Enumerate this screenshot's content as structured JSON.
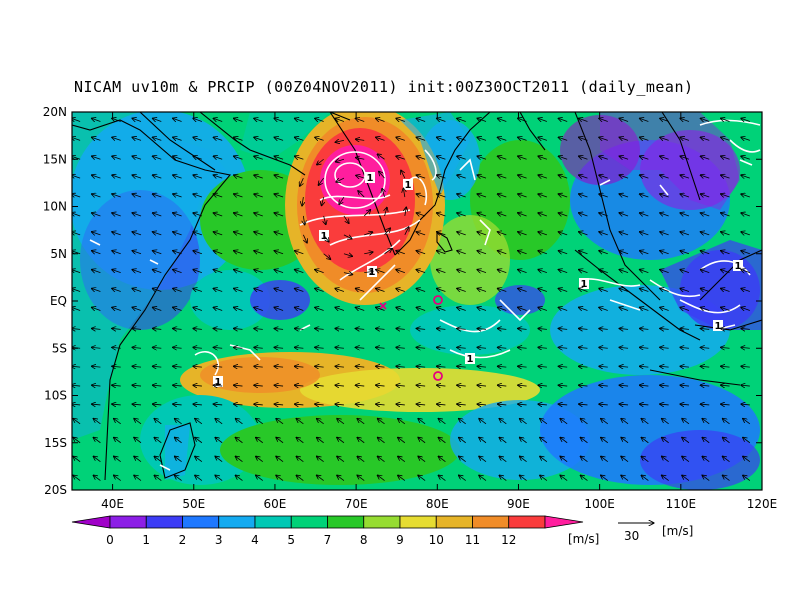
{
  "title": "NICAM uv10m & PRCIP (00Z04NOV2011) init:00Z30OCT2011 (daily_mean)",
  "map": {
    "lon_range": [
      35,
      120
    ],
    "lat_range": [
      -20,
      20
    ],
    "lon_ticks": [
      {
        "value": 40,
        "label": "40E"
      },
      {
        "value": 50,
        "label": "50E"
      },
      {
        "value": 60,
        "label": "60E"
      },
      {
        "value": 70,
        "label": "70E"
      },
      {
        "value": 80,
        "label": "80E"
      },
      {
        "value": 90,
        "label": "90E"
      },
      {
        "value": 100,
        "label": "100E"
      },
      {
        "value": 110,
        "label": "110E"
      },
      {
        "value": 120,
        "label": "120E"
      }
    ],
    "lat_ticks": [
      {
        "value": 20,
        "label": "20N"
      },
      {
        "value": 15,
        "label": "15N"
      },
      {
        "value": 10,
        "label": "10N"
      },
      {
        "value": 5,
        "label": "5N"
      },
      {
        "value": 0,
        "label": "EQ"
      },
      {
        "value": -5,
        "label": "5S"
      },
      {
        "value": -10,
        "label": "10S"
      },
      {
        "value": -15,
        "label": "15S"
      },
      {
        "value": -20,
        "label": "20S"
      }
    ],
    "wind_speed_field": "uv10m daily mean wind speed [m/s]",
    "precip_contour_label": "1"
  },
  "colorbar": {
    "unit": "[m/s]",
    "levels": [
      "0",
      "1",
      "2",
      "3",
      "4",
      "5",
      "7",
      "8",
      "9",
      "10",
      "11",
      "12"
    ],
    "colors": [
      "#a000c8",
      "#8c1ee6",
      "#3c3cf5",
      "#1e78ff",
      "#14aaf0",
      "#00c8b4",
      "#00d278",
      "#28c828",
      "#96dc32",
      "#e6dc32",
      "#e6b428",
      "#f08c28",
      "#fa3c3c",
      "#ff1e9e"
    ]
  },
  "vector_key": {
    "value": "30",
    "unit": "[m/s]"
  }
}
